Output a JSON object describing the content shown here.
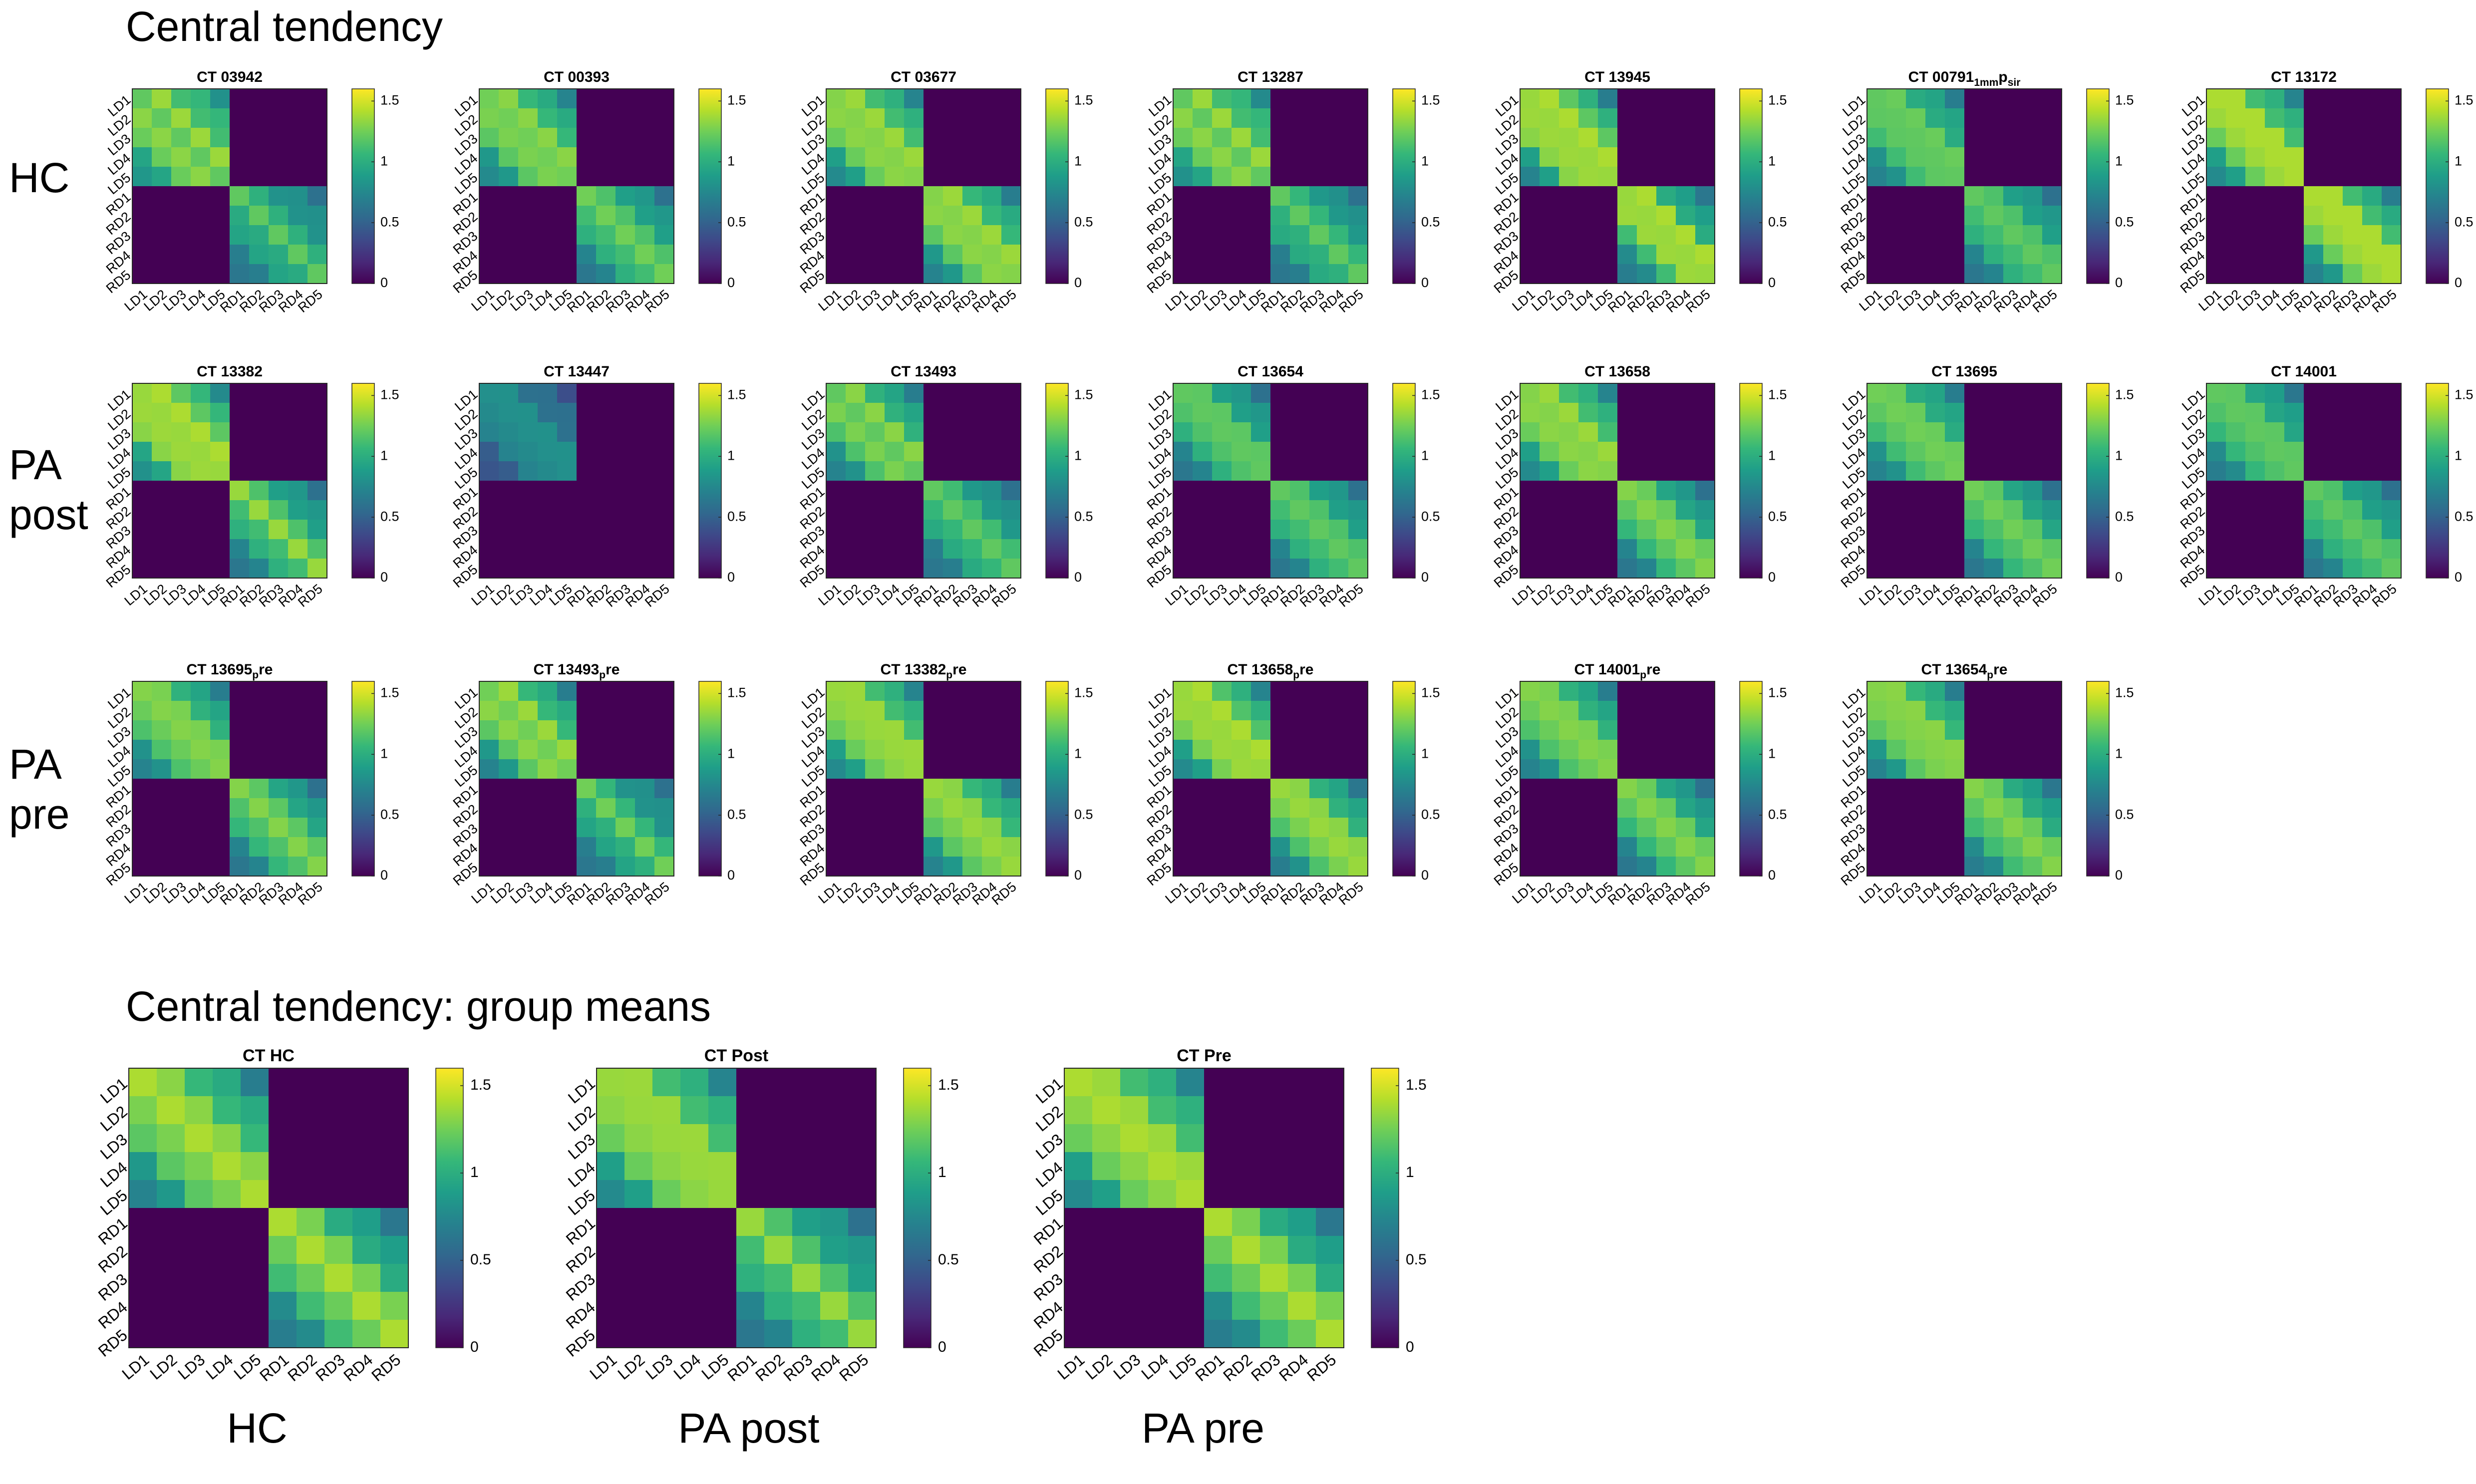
{
  "figure": {
    "section_title_top": "Central tendency",
    "section_title_bottom": "Central tendency: group means",
    "row_labels": [
      [
        "HC"
      ],
      [
        "PA",
        "post"
      ],
      [
        "PA",
        "pre"
      ]
    ],
    "group_labels": [
      "HC",
      "PA post",
      "PA pre"
    ]
  },
  "colormap": {
    "name": "viridis",
    "stops": [
      "#440154",
      "#482878",
      "#3e4989",
      "#31688e",
      "#26828e",
      "#1f9e89",
      "#35b779",
      "#6ece58",
      "#b5de2b",
      "#fde725"
    ],
    "zero_color": "#440154"
  },
  "chart_data": {
    "type": "heatmap",
    "row_labels": [
      "LD1",
      "LD2",
      "LD3",
      "LD4",
      "LD5",
      "RD1",
      "RD2",
      "RD3",
      "RD4",
      "RD5"
    ],
    "col_labels": [
      "LD1",
      "LD2",
      "LD3",
      "LD4",
      "LD5",
      "RD1",
      "RD2",
      "RD3",
      "RD4",
      "RD5"
    ],
    "colorbar_ticks_small": [
      "0",
      "0.5",
      "1",
      "1.5"
    ],
    "colorbar_ticks_big": [
      "0",
      "0.5",
      "1",
      "1.5"
    ],
    "clim": [
      0,
      1.6
    ],
    "subjects": [
      {
        "title": "CT 03942",
        "row": 0,
        "col": 0,
        "left": [
          1.55,
          1.35,
          1.15,
          0.95
        ],
        "right": [
          1.15,
          1.0,
          0.85,
          0.7
        ],
        "diag": 1.2,
        "mask_right": false
      },
      {
        "title": "CT 00393",
        "row": 0,
        "col": 1,
        "left": [
          1.5,
          1.3,
          1.05,
          0.85
        ],
        "right": [
          1.3,
          1.1,
          0.9,
          0.7
        ],
        "diag": 1.25,
        "mask_right": false
      },
      {
        "title": "CT 03677",
        "row": 0,
        "col": 2,
        "left": [
          1.55,
          1.35,
          1.1,
          0.85
        ],
        "right": [
          1.55,
          1.3,
          1.05,
          0.8
        ],
        "diag": 1.3,
        "mask_right": false
      },
      {
        "title": "CT 13287",
        "row": 0,
        "col": 3,
        "left": [
          1.55,
          1.35,
          1.15,
          0.9
        ],
        "right": [
          1.2,
          1.05,
          0.85,
          0.7
        ],
        "diag": 1.2,
        "mask_right": false
      },
      {
        "title": "CT 13945",
        "row": 0,
        "col": 4,
        "left": [
          1.6,
          1.45,
          1.1,
          0.8
        ],
        "right": [
          1.6,
          1.2,
          0.95,
          0.75
        ],
        "diag": 1.35,
        "mask_right": false
      },
      {
        "title": "CT 00791",
        "sub": "1mm",
        "title2": "p",
        "sub2": "sir",
        "row": 0,
        "col": 5,
        "left": [
          1.4,
          1.2,
          1.0,
          0.8
        ],
        "right": [
          1.3,
          1.1,
          0.9,
          0.7
        ],
        "diag": 1.2,
        "mask_right": false
      },
      {
        "title": "CT 13172",
        "row": 0,
        "col": 6,
        "left": [
          1.6,
          1.35,
          1.1,
          0.85
        ],
        "right": [
          1.6,
          1.35,
          1.05,
          0.8
        ],
        "diag": 1.4,
        "mask_right": false
      },
      {
        "title": "CT 13382",
        "row": 1,
        "col": 0,
        "left": [
          1.6,
          1.45,
          1.15,
          0.9
        ],
        "right": [
          1.3,
          1.1,
          0.9,
          0.7
        ],
        "diag": 1.35,
        "mask_right": false
      },
      {
        "title": "CT 13447",
        "row": 1,
        "col": 1,
        "left": [
          0.9,
          0.75,
          0.6,
          0.45
        ],
        "right": [
          0,
          0,
          0,
          0
        ],
        "diag": 0.8,
        "mask_right": true
      },
      {
        "title": "CT 13493",
        "row": 1,
        "col": 2,
        "left": [
          1.5,
          1.25,
          1.0,
          0.8
        ],
        "right": [
          1.25,
          1.05,
          0.85,
          0.7
        ],
        "diag": 1.2,
        "mask_right": false
      },
      {
        "title": "CT 13654",
        "row": 1,
        "col": 3,
        "left": [
          1.35,
          1.1,
          0.9,
          0.7
        ],
        "right": [
          1.3,
          1.1,
          0.9,
          0.7
        ],
        "diag": 1.2,
        "mask_right": false
      },
      {
        "title": "CT 13658",
        "row": 1,
        "col": 4,
        "left": [
          1.55,
          1.35,
          1.1,
          0.85
        ],
        "right": [
          1.4,
          1.15,
          0.9,
          0.7
        ],
        "diag": 1.3,
        "mask_right": false
      },
      {
        "title": "CT 13695",
        "row": 1,
        "col": 5,
        "left": [
          1.4,
          1.2,
          1.0,
          0.8
        ],
        "right": [
          1.35,
          1.15,
          0.9,
          0.7
        ],
        "diag": 1.25,
        "mask_right": false
      },
      {
        "title": "CT 14001",
        "row": 1,
        "col": 6,
        "left": [
          1.35,
          1.15,
          0.95,
          0.75
        ],
        "right": [
          1.3,
          1.1,
          0.9,
          0.7
        ],
        "diag": 1.2,
        "mask_right": false
      },
      {
        "title": "CT 13695",
        "sub": "p",
        "title2": "re",
        "row": 2,
        "col": 0,
        "left": [
          1.45,
          1.25,
          1.0,
          0.8
        ],
        "right": [
          1.35,
          1.15,
          0.9,
          0.7
        ],
        "diag": 1.3,
        "mask_right": false
      },
      {
        "title": "CT 13493",
        "sub": "p",
        "title2": "re",
        "row": 2,
        "col": 1,
        "left": [
          1.55,
          1.3,
          1.05,
          0.8
        ],
        "right": [
          1.2,
          1.0,
          0.85,
          0.7
        ],
        "diag": 1.25,
        "mask_right": false
      },
      {
        "title": "CT 13382",
        "sub": "p",
        "title2": "re",
        "row": 2,
        "col": 2,
        "left": [
          1.55,
          1.35,
          1.1,
          0.85
        ],
        "right": [
          1.5,
          1.3,
          1.05,
          0.8
        ],
        "diag": 1.35,
        "mask_right": false
      },
      {
        "title": "CT 13658",
        "sub": "p",
        "title2": "re",
        "row": 2,
        "col": 3,
        "left": [
          1.6,
          1.4,
          1.1,
          0.85
        ],
        "right": [
          1.5,
          1.25,
          1.0,
          0.75
        ],
        "diag": 1.35,
        "mask_right": false
      },
      {
        "title": "CT 14001",
        "sub": "p",
        "title2": "re",
        "row": 2,
        "col": 4,
        "left": [
          1.45,
          1.25,
          1.0,
          0.8
        ],
        "right": [
          1.4,
          1.15,
          0.9,
          0.7
        ],
        "diag": 1.3,
        "mask_right": false
      },
      {
        "title": "CT 13654",
        "sub": "p",
        "title2": "re",
        "row": 2,
        "col": 5,
        "left": [
          1.5,
          1.3,
          1.05,
          0.8
        ],
        "right": [
          1.4,
          1.2,
          0.95,
          0.75
        ],
        "diag": 1.3,
        "mask_right": false
      }
    ],
    "group_means": [
      {
        "title": "CT HC",
        "left": [
          1.5,
          1.3,
          1.05,
          0.8
        ],
        "right": [
          1.45,
          1.2,
          0.95,
          0.75
        ],
        "diag": 1.4
      },
      {
        "title": "CT Post",
        "left": [
          1.55,
          1.35,
          1.1,
          0.85
        ],
        "right": [
          1.3,
          1.1,
          0.9,
          0.7
        ],
        "diag": 1.35
      },
      {
        "title": "CT Pre",
        "left": [
          1.55,
          1.35,
          1.1,
          0.85
        ],
        "right": [
          1.45,
          1.2,
          0.95,
          0.75
        ],
        "diag": 1.4
      }
    ]
  }
}
